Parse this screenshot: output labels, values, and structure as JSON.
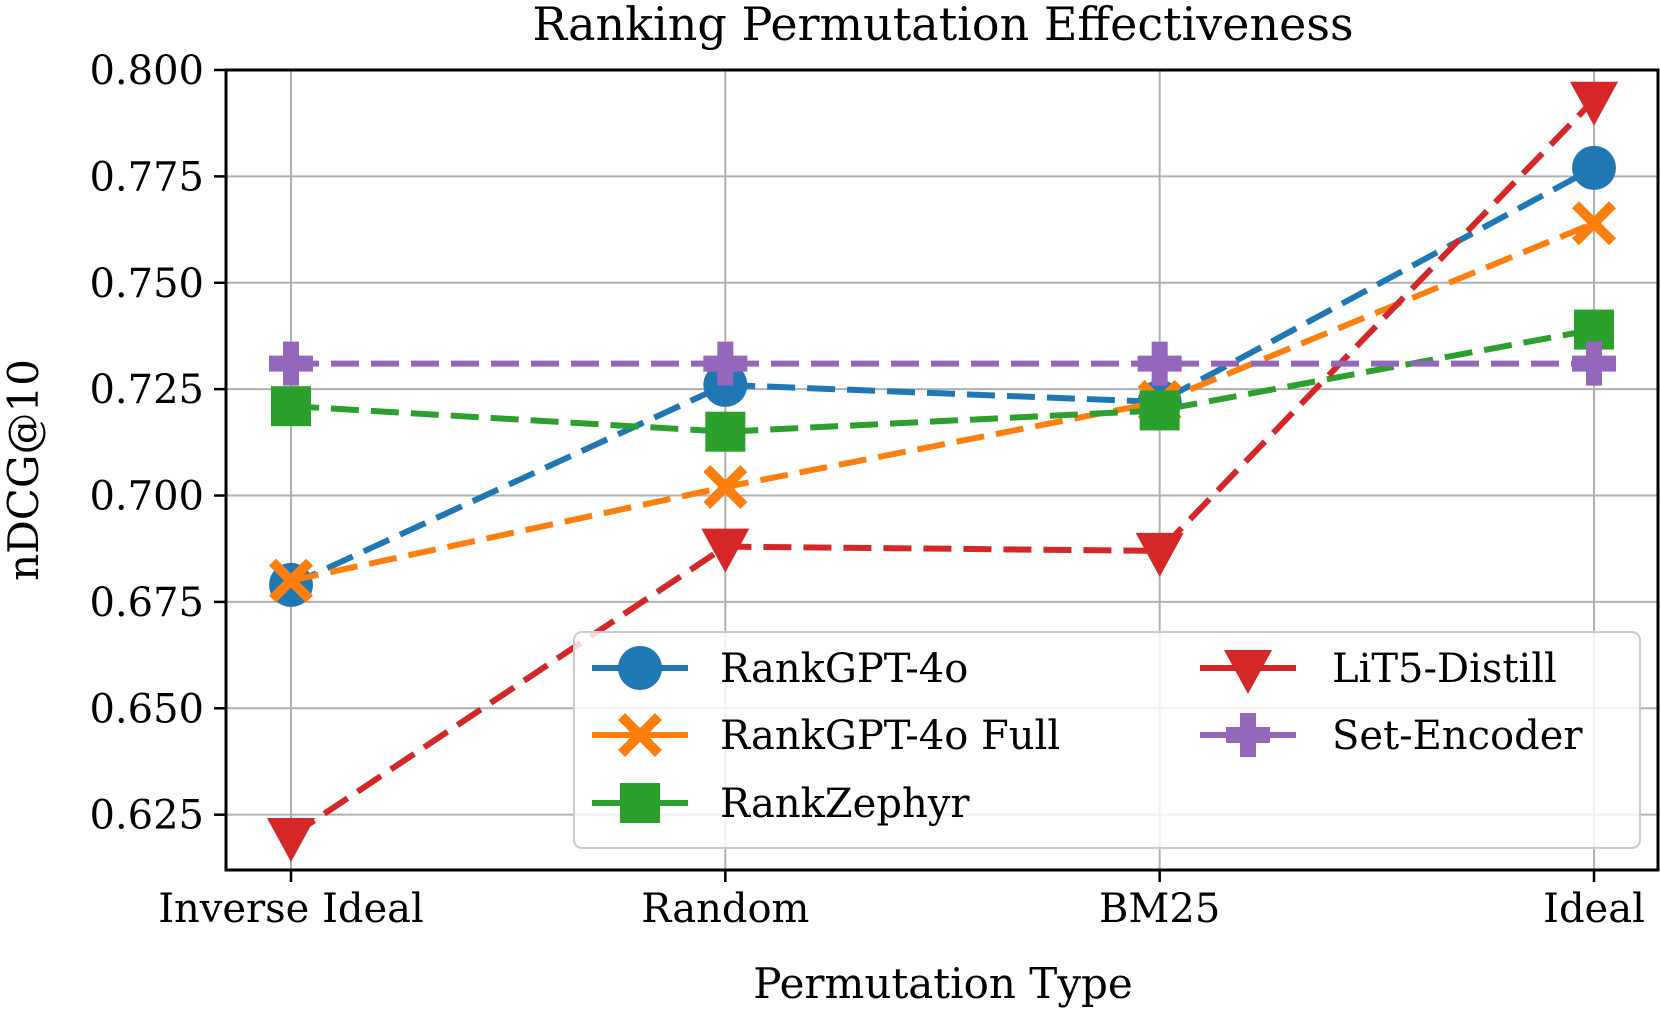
{
  "chart_data": {
    "type": "line",
    "title": "Ranking Permutation Effectiveness",
    "xlabel": "Permutation Type",
    "ylabel": "nDCG@10",
    "categories": [
      "Inverse Ideal",
      "Random",
      "BM25",
      "Ideal"
    ],
    "ylim": [
      0.612,
      0.8
    ],
    "yticks": [
      0.625,
      0.65,
      0.675,
      0.7,
      0.725,
      0.75,
      0.775,
      0.8
    ],
    "ytick_labels": [
      "0.625",
      "0.650",
      "0.675",
      "0.700",
      "0.725",
      "0.750",
      "0.775",
      "0.800"
    ],
    "grid": true,
    "legend_position": "lower-right",
    "line_style": "dashed",
    "series": [
      {
        "name": "RankGPT-4o",
        "color": "#1f77b4",
        "marker": "circle",
        "values": [
          0.679,
          0.726,
          0.722,
          0.777
        ]
      },
      {
        "name": "RankGPT-4o Full",
        "color": "#ff7f0e",
        "marker": "x-filled",
        "values": [
          0.68,
          0.702,
          0.722,
          0.764
        ]
      },
      {
        "name": "RankZephyr",
        "color": "#2ca02c",
        "marker": "square",
        "values": [
          0.721,
          0.715,
          0.72,
          0.739
        ]
      },
      {
        "name": "LiT5-Distill",
        "color": "#d62728",
        "marker": "triangle-down",
        "values": [
          0.62,
          0.688,
          0.687,
          0.793
        ]
      },
      {
        "name": "Set-Encoder",
        "color": "#9467bd",
        "marker": "plus-filled",
        "values": [
          0.731,
          0.731,
          0.731,
          0.731
        ]
      }
    ]
  }
}
